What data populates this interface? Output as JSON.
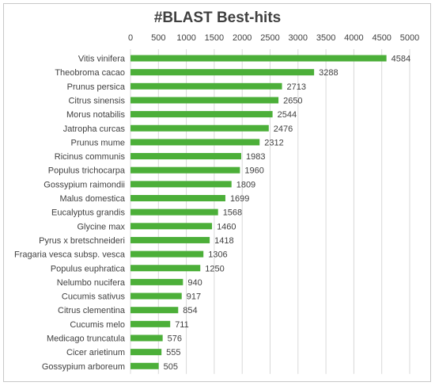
{
  "chart_data": {
    "type": "bar",
    "orientation": "horizontal",
    "title": "#BLAST Best-hits",
    "xlabel": "",
    "ylabel": "",
    "xlim": [
      0,
      5000
    ],
    "x_ticks": [
      0,
      500,
      1000,
      1500,
      2000,
      2500,
      3000,
      3500,
      4000,
      4500,
      5000
    ],
    "x_axis_position": "top",
    "grid": true,
    "bar_color": "#4caf39",
    "categories": [
      "Vitis vinifera",
      "Theobroma cacao",
      "Prunus persica",
      "Citrus sinensis",
      "Morus notabilis",
      "Jatropha curcas",
      "Prunus mume",
      "Ricinus communis",
      "Populus trichocarpa",
      "Gossypium raimondii",
      "Malus domestica",
      "Eucalyptus grandis",
      "Glycine max",
      "Pyrus x bretschneideri",
      "Fragaria vesca subsp. vesca",
      "Populus euphratica",
      "Nelumbo nucifera",
      "Cucumis sativus",
      "Citrus clementina",
      "Cucumis melo",
      "Medicago truncatula",
      "Cicer arietinum",
      "Gossypium arboreum"
    ],
    "values": [
      4584,
      3288,
      2713,
      2650,
      2544,
      2476,
      2312,
      1983,
      1960,
      1809,
      1699,
      1568,
      1460,
      1418,
      1306,
      1250,
      940,
      917,
      854,
      711,
      576,
      555,
      505
    ],
    "data_labels": true
  }
}
